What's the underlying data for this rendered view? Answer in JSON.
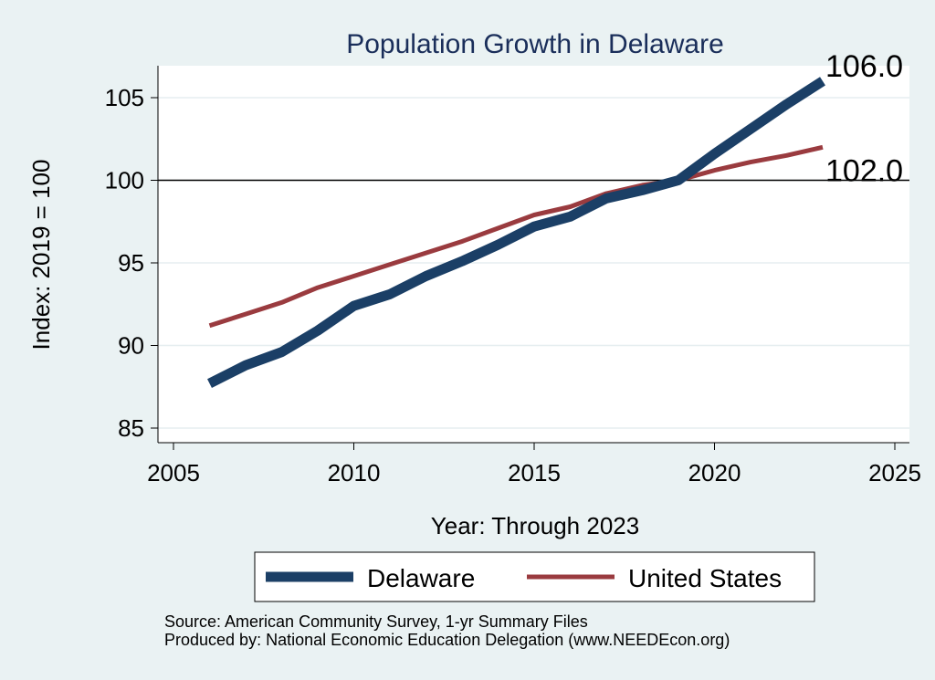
{
  "chart_data": {
    "type": "line",
    "title": "Population Growth in Delaware",
    "xlabel": "Year: Through 2023",
    "ylabel": "Index: 2019 = 100",
    "xlim": [
      2005,
      2025
    ],
    "ylim": [
      85,
      107
    ],
    "x_ticks": [
      "2005",
      "2010",
      "2015",
      "2020",
      "2025"
    ],
    "y_ticks": [
      "85",
      "90",
      "95",
      "100",
      "105"
    ],
    "reference_line": 100,
    "grid": true,
    "legend_position": "bottom",
    "x": [
      2006,
      2007,
      2008,
      2009,
      2010,
      2011,
      2012,
      2013,
      2014,
      2015,
      2016,
      2017,
      2018,
      2019,
      2020,
      2021,
      2022,
      2023
    ],
    "series": [
      {
        "name": "Delaware",
        "color": "#1b3f66",
        "values": [
          87.7,
          88.8,
          89.6,
          90.9,
          92.4,
          93.1,
          94.2,
          95.1,
          96.1,
          97.2,
          97.8,
          98.9,
          99.4,
          100.0,
          101.6,
          103.1,
          104.6,
          106.0
        ],
        "end_label": "106.0"
      },
      {
        "name": "United States",
        "color": "#9a3b3f",
        "values": [
          91.2,
          91.9,
          92.6,
          93.5,
          94.2,
          94.9,
          95.6,
          96.3,
          97.1,
          97.9,
          98.4,
          99.2,
          99.7,
          100.0,
          100.6,
          101.1,
          101.5,
          102.0
        ],
        "end_label": "102.0"
      }
    ]
  },
  "source": {
    "line1": "Source: American Community Survey, 1-yr Summary Files",
    "line2": "Produced by: National Economic Education Delegation (www.NEEDEcon.org)"
  }
}
